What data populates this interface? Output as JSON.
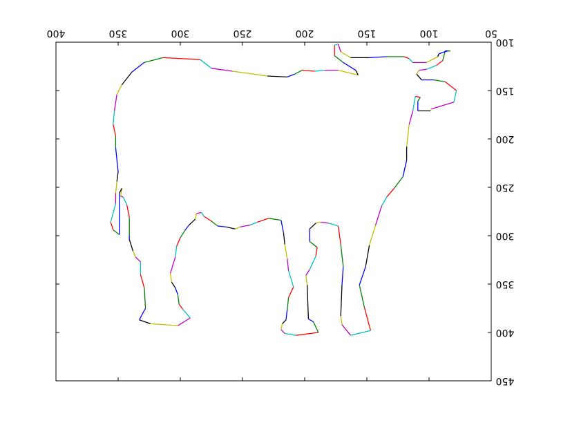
{
  "chart_data": {
    "type": "line",
    "x": [
      83,
      87,
      89,
      94,
      102,
      108,
      110,
      106,
      96,
      87,
      78,
      80,
      98,
      99,
      109,
      109,
      107,
      111,
      113,
      116,
      118,
      118,
      121,
      128,
      134,
      138,
      143,
      148,
      151,
      156,
      152,
      147,
      163,
      170,
      171,
      170,
      169,
      171,
      173,
      181,
      187,
      191,
      196,
      196,
      190,
      191,
      196,
      199,
      198,
      197,
      193,
      189,
      207,
      216,
      219,
      218,
      215,
      214,
      213,
      209,
      213,
      214,
      216,
      217,
      219,
      229,
      238,
      244,
      252,
      256,
      263,
      270,
      275,
      281,
      283,
      287,
      288,
      293,
      296,
      300,
      303,
      304,
      308,
      307,
      304,
      302,
      301,
      298,
      292,
      302,
      324,
      333,
      328,
      329,
      332,
      332,
      336,
      338,
      341,
      341,
      341,
      343,
      346,
      348,
      347,
      349,
      349,
      354,
      356,
      352,
      352,
      351,
      350,
      352,
      352,
      354,
      353,
      351,
      347,
      339,
      329,
      314,
      284,
      275,
      258,
      230,
      214,
      208,
      202,
      192,
      184,
      173,
      157,
      159,
      169,
      176,
      176,
      173,
      171,
      163,
      148,
      134,
      120,
      116,
      113,
      102,
      93,
      92,
      85,
      83
    ],
    "y": [
      109,
      109,
      119,
      124,
      128,
      129,
      133,
      139,
      139,
      141,
      150,
      162,
      169,
      171,
      171,
      161,
      157,
      156,
      171,
      185,
      208,
      222,
      239,
      251,
      260,
      269,
      289,
      310,
      332,
      351,
      374,
      398,
      403,
      392,
      383,
      351,
      332,
      309,
      290,
      287,
      286,
      287,
      293,
      306,
      312,
      321,
      335,
      341,
      351,
      386,
      389,
      400,
      403,
      401,
      397,
      391,
      387,
      376,
      364,
      353,
      336,
      324,
      309,
      297,
      284,
      282,
      286,
      289,
      291,
      293,
      291,
      290,
      285,
      280,
      276,
      277,
      283,
      289,
      294,
      302,
      311,
      322,
      339,
      348,
      354,
      361,
      371,
      376,
      385,
      393,
      391,
      387,
      375,
      354,
      340,
      327,
      322,
      316,
      304,
      300,
      281,
      268,
      260,
      259,
      251,
      256,
      299,
      294,
      286,
      267,
      256,
      244,
      234,
      209,
      197,
      185,
      171,
      154,
      144,
      131,
      121,
      116,
      118,
      127,
      130,
      135,
      136,
      133,
      129,
      130,
      129,
      129,
      134,
      129,
      121,
      114,
      103,
      102,
      110,
      116,
      116,
      115,
      115,
      117,
      121,
      121,
      115,
      112,
      109,
      109
    ],
    "colors": [
      "#0000ff",
      "#008000",
      "#ff0000",
      "#00bfbf",
      "#bf00bf",
      "#bfbf00",
      "#000000"
    ],
    "xlim": [
      400,
      50
    ],
    "xticks": [
      400,
      350,
      300,
      250,
      200,
      150,
      100,
      50
    ],
    "ylim": [
      450,
      100
    ],
    "yticks": [
      450,
      400,
      350,
      300,
      250,
      200,
      150,
      100
    ],
    "grid": false
  }
}
